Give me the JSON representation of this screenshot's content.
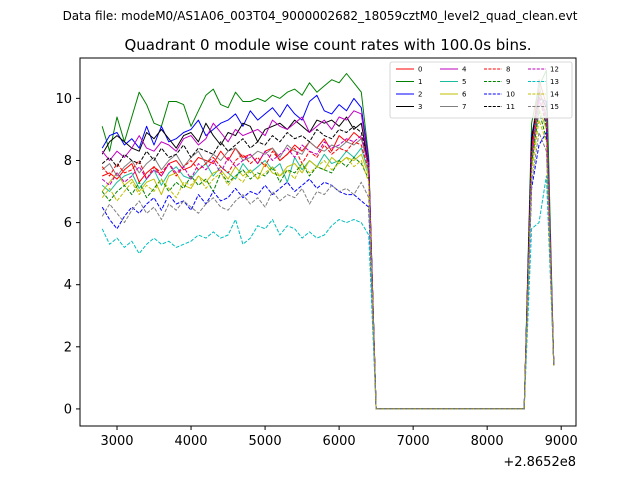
{
  "figure": {
    "suptitle": "Data file: modeM0/AS1A06_003T04_9000002682_18059cztM0_level2_quad_clean.evt",
    "x_offset_label": "+2.8652e8"
  },
  "chart_data": {
    "type": "line",
    "title": "Quadrant 0 module wise count rates with 100.0s bins.",
    "xlabel": "",
    "ylabel": "",
    "xlim": [
      2500,
      9200
    ],
    "ylim": [
      -0.55,
      11.3
    ],
    "x_ticks": [
      3000,
      4000,
      5000,
      6000,
      7000,
      8000,
      9000
    ],
    "x_tick_labels": [
      "3000",
      "4000",
      "5000",
      "6000",
      "7000",
      "8000",
      "9000"
    ],
    "y_ticks": [
      0,
      2,
      4,
      6,
      8,
      10
    ],
    "y_tick_labels": [
      "0",
      "2",
      "4",
      "6",
      "8",
      "10"
    ],
    "legend_location": "upper right",
    "legend_columns": 4,
    "grid": false,
    "x": [
      2800,
      2900,
      3000,
      3100,
      3200,
      3300,
      3400,
      3500,
      3600,
      3700,
      3800,
      3900,
      4000,
      4100,
      4200,
      4300,
      4400,
      4500,
      4600,
      4700,
      4800,
      4900,
      5000,
      5100,
      5200,
      5300,
      5400,
      5500,
      5600,
      5700,
      5800,
      5900,
      6000,
      6100,
      6200,
      6300,
      6400,
      6500,
      6600,
      6700,
      6800,
      6900,
      7000,
      7100,
      7200,
      7300,
      7400,
      7500,
      7600,
      7700,
      7800,
      7900,
      8000,
      8100,
      8200,
      8300,
      8400,
      8500,
      8600,
      8700,
      8800,
      8900
    ],
    "series": [
      {
        "name": "0",
        "color": "#ff0000",
        "dash": "solid",
        "values": [
          7.5,
          7.6,
          7.4,
          7.7,
          7.9,
          7.3,
          7.6,
          7.8,
          7.5,
          7.9,
          8.0,
          7.7,
          7.8,
          8.1,
          8.0,
          7.9,
          8.3,
          8.0,
          8.4,
          8.1,
          8.2,
          7.9,
          8.3,
          8.4,
          8.0,
          8.2,
          8.5,
          8.3,
          8.6,
          8.4,
          8.7,
          8.3,
          8.8,
          8.6,
          8.9,
          8.7,
          8.0,
          0,
          0,
          0,
          0,
          0,
          0,
          0,
          0,
          0,
          0,
          0,
          0,
          0,
          0,
          0,
          0,
          0,
          0,
          0,
          0,
          0,
          8.5,
          10.6,
          9.8,
          1.4
        ]
      },
      {
        "name": "1",
        "color": "#008000",
        "dash": "solid",
        "values": [
          9.1,
          8.3,
          9.4,
          8.6,
          9.4,
          10.2,
          9.8,
          9.2,
          9.1,
          9.9,
          9.9,
          9.8,
          9.1,
          9.6,
          10.1,
          10.3,
          9.8,
          9.7,
          10.2,
          9.9,
          9.9,
          10.0,
          9.9,
          10.1,
          10.0,
          10.2,
          10.3,
          10.1,
          10.5,
          10.2,
          10.4,
          10.6,
          10.5,
          10.8,
          10.5,
          10.2,
          8.1,
          0,
          0,
          0,
          0,
          0,
          0,
          0,
          0,
          0,
          0,
          0,
          0,
          0,
          0,
          0,
          0,
          0,
          0,
          0,
          0,
          0,
          9.2,
          10.4,
          10.9,
          1.4
        ]
      },
      {
        "name": "2",
        "color": "#0000ff",
        "dash": "solid",
        "values": [
          8.4,
          8.8,
          8.9,
          8.5,
          8.7,
          8.4,
          9.1,
          8.5,
          9.1,
          8.6,
          8.7,
          8.9,
          9.0,
          9.3,
          8.8,
          9.0,
          9.2,
          9.3,
          9.5,
          9.1,
          9.6,
          9.3,
          9.5,
          9.7,
          9.4,
          9.8,
          9.5,
          9.3,
          9.9,
          10.1,
          9.6,
          9.5,
          9.8,
          9.6,
          10.0,
          9.7,
          8.0,
          0,
          0,
          0,
          0,
          0,
          0,
          0,
          0,
          0,
          0,
          0,
          0,
          0,
          0,
          0,
          0,
          0,
          0,
          0,
          0,
          0,
          8.8,
          10.0,
          9.9,
          1.4
        ]
      },
      {
        "name": "3",
        "color": "#000000",
        "dash": "solid",
        "values": [
          8.2,
          8.6,
          8.8,
          8.6,
          8.4,
          8.3,
          8.9,
          8.7,
          9.0,
          8.7,
          8.4,
          8.8,
          8.9,
          8.6,
          9.2,
          8.8,
          8.5,
          8.9,
          8.8,
          9.2,
          9.1,
          8.6,
          9.0,
          9.1,
          9.2,
          9.0,
          9.3,
          9.1,
          8.9,
          9.3,
          9.2,
          9.3,
          9.1,
          9.4,
          9.0,
          9.2,
          7.8,
          0,
          0,
          0,
          0,
          0,
          0,
          0,
          0,
          0,
          0,
          0,
          0,
          0,
          0,
          0,
          0,
          0,
          0,
          0,
          0,
          0,
          8.6,
          10.2,
          9.7,
          1.4
        ]
      },
      {
        "name": "4",
        "color": "#bf00bf",
        "dash": "solid",
        "values": [
          8.3,
          8.0,
          8.3,
          8.1,
          8.4,
          8.8,
          8.4,
          8.3,
          8.6,
          8.5,
          8.3,
          8.7,
          8.8,
          8.5,
          8.7,
          9.2,
          8.9,
          8.6,
          9.0,
          8.8,
          8.9,
          9.0,
          8.8,
          9.3,
          9.1,
          9.0,
          9.2,
          9.4,
          8.9,
          9.1,
          9.3,
          9.0,
          9.4,
          9.3,
          9.6,
          9.5,
          7.9,
          0,
          0,
          0,
          0,
          0,
          0,
          0,
          0,
          0,
          0,
          0,
          0,
          0,
          0,
          0,
          0,
          0,
          0,
          0,
          0,
          0,
          8.3,
          9.9,
          9.5,
          1.4
        ]
      },
      {
        "name": "5",
        "color": "#1abc9c",
        "dash": "solid",
        "values": [
          7.2,
          7.0,
          7.3,
          7.5,
          7.6,
          7.1,
          7.4,
          7.7,
          7.2,
          7.6,
          7.8,
          7.5,
          7.4,
          7.7,
          7.9,
          7.5,
          7.8,
          7.6,
          7.4,
          7.9,
          7.6,
          7.8,
          8.0,
          7.7,
          7.9,
          7.3,
          8.1,
          7.7,
          8.0,
          7.8,
          8.2,
          7.9,
          8.0,
          8.3,
          8.1,
          8.4,
          7.6,
          0,
          0,
          0,
          0,
          0,
          0,
          0,
          0,
          0,
          0,
          0,
          0,
          0,
          0,
          0,
          0,
          0,
          0,
          0,
          0,
          0,
          8.0,
          10.5,
          9.2,
          1.4
        ]
      },
      {
        "name": "6",
        "color": "#bfbf00",
        "dash": "solid",
        "values": [
          7.0,
          7.3,
          7.6,
          7.2,
          7.4,
          7.0,
          7.3,
          7.4,
          6.9,
          7.5,
          7.6,
          7.2,
          7.1,
          7.5,
          7.3,
          7.6,
          7.7,
          7.4,
          7.8,
          7.5,
          7.7,
          7.4,
          7.9,
          7.6,
          7.5,
          7.8,
          7.9,
          7.6,
          8.0,
          7.8,
          7.7,
          8.1,
          7.9,
          8.1,
          8.0,
          8.2,
          7.5,
          0,
          0,
          0,
          0,
          0,
          0,
          0,
          0,
          0,
          0,
          0,
          0,
          0,
          0,
          0,
          0,
          0,
          0,
          0,
          0,
          0,
          7.8,
          9.7,
          9.0,
          1.4
        ]
      },
      {
        "name": "7",
        "color": "#808080",
        "dash": "solid",
        "values": [
          7.7,
          7.9,
          7.5,
          7.8,
          8.0,
          7.6,
          7.9,
          8.1,
          7.7,
          8.0,
          8.2,
          7.8,
          8.1,
          8.3,
          7.9,
          8.2,
          8.0,
          8.3,
          8.4,
          8.0,
          8.1,
          8.3,
          8.2,
          8.4,
          8.1,
          8.5,
          8.3,
          8.2,
          8.6,
          8.4,
          8.3,
          8.5,
          8.4,
          8.6,
          8.5,
          8.7,
          7.8,
          0,
          0,
          0,
          0,
          0,
          0,
          0,
          0,
          0,
          0,
          0,
          0,
          0,
          0,
          0,
          0,
          0,
          0,
          0,
          0,
          0,
          8.2,
          9.8,
          9.6,
          1.4
        ]
      },
      {
        "name": "8",
        "color": "#ff0000",
        "dash": "dashed",
        "values": [
          7.8,
          7.5,
          7.9,
          7.6,
          7.7,
          8.0,
          7.4,
          7.8,
          7.6,
          7.9,
          7.5,
          7.8,
          8.0,
          7.7,
          7.9,
          8.1,
          7.8,
          7.6,
          8.0,
          8.2,
          7.9,
          8.1,
          7.8,
          8.3,
          8.0,
          8.2,
          8.4,
          7.9,
          8.3,
          8.1,
          8.5,
          8.2,
          8.4,
          8.3,
          8.6,
          8.5,
          7.7,
          0,
          0,
          0,
          0,
          0,
          0,
          0,
          0,
          0,
          0,
          0,
          0,
          0,
          0,
          0,
          0,
          0,
          0,
          0,
          0,
          0,
          8.3,
          10.3,
          9.4,
          1.4
        ]
      },
      {
        "name": "9",
        "color": "#008000",
        "dash": "dashed",
        "values": [
          7.0,
          6.7,
          7.0,
          7.2,
          6.9,
          7.3,
          6.8,
          7.1,
          7.4,
          7.0,
          7.3,
          7.1,
          7.5,
          7.2,
          7.4,
          7.0,
          7.6,
          7.3,
          7.5,
          7.7,
          7.4,
          7.6,
          7.5,
          7.8,
          7.3,
          7.7,
          7.6,
          7.9,
          7.5,
          7.8,
          7.7,
          7.6,
          8.0,
          7.8,
          8.1,
          7.9,
          7.4,
          0,
          0,
          0,
          0,
          0,
          0,
          0,
          0,
          0,
          0,
          0,
          0,
          0,
          0,
          0,
          0,
          0,
          0,
          0,
          0,
          0,
          7.9,
          9.6,
          8.7,
          1.4
        ]
      },
      {
        "name": "10",
        "color": "#0000ff",
        "dash": "dashed",
        "values": [
          6.5,
          6.1,
          5.8,
          6.2,
          6.5,
          6.3,
          6.6,
          6.8,
          6.4,
          6.9,
          6.6,
          6.7,
          6.4,
          6.9,
          6.6,
          7.0,
          6.7,
          6.8,
          7.1,
          6.8,
          7.0,
          6.9,
          7.2,
          6.9,
          7.1,
          7.3,
          7.0,
          7.2,
          7.4,
          7.1,
          7.3,
          7.2,
          7.0,
          6.9,
          6.9,
          6.7,
          6.5,
          0,
          0,
          0,
          0,
          0,
          0,
          0,
          0,
          0,
          0,
          0,
          0,
          0,
          0,
          0,
          0,
          0,
          0,
          0,
          0,
          0,
          7.1,
          8.5,
          8.9,
          1.4
        ]
      },
      {
        "name": "11",
        "color": "#000000",
        "dash": "dashed",
        "values": [
          7.9,
          8.1,
          7.8,
          8.2,
          8.0,
          7.9,
          8.3,
          8.0,
          8.4,
          8.1,
          8.2,
          8.5,
          8.1,
          8.4,
          8.3,
          8.2,
          8.6,
          8.3,
          8.5,
          8.7,
          8.4,
          8.6,
          8.5,
          8.8,
          8.6,
          8.9,
          8.7,
          8.8,
          8.6,
          9.0,
          8.8,
          8.7,
          9.0,
          8.9,
          9.1,
          8.9,
          7.9,
          0,
          0,
          0,
          0,
          0,
          0,
          0,
          0,
          0,
          0,
          0,
          0,
          0,
          0,
          0,
          0,
          0,
          0,
          0,
          0,
          0,
          8.7,
          10.1,
          9.1,
          1.4
        ]
      },
      {
        "name": "12",
        "color": "#bf00bf",
        "dash": "dashed",
        "values": [
          7.4,
          7.2,
          7.6,
          7.3,
          7.5,
          7.8,
          7.4,
          7.7,
          7.5,
          7.9,
          7.6,
          7.8,
          7.4,
          7.9,
          7.7,
          8.0,
          7.6,
          8.1,
          7.8,
          8.0,
          8.2,
          7.9,
          8.3,
          8.0,
          8.2,
          8.4,
          8.1,
          8.5,
          8.3,
          8.2,
          8.6,
          8.4,
          8.5,
          8.7,
          8.6,
          8.8,
          7.8,
          0,
          0,
          0,
          0,
          0,
          0,
          0,
          0,
          0,
          0,
          0,
          0,
          0,
          0,
          0,
          0,
          0,
          0,
          0,
          0,
          0,
          8.1,
          10.0,
          9.3,
          1.4
        ]
      },
      {
        "name": "13",
        "color": "#00bfbf",
        "dash": "dashed",
        "values": [
          5.8,
          5.3,
          5.5,
          5.2,
          5.4,
          5.0,
          5.3,
          5.5,
          5.3,
          5.4,
          5.2,
          5.3,
          5.4,
          5.6,
          5.5,
          5.7,
          5.5,
          5.6,
          6.1,
          5.3,
          5.5,
          5.9,
          5.8,
          6.1,
          5.6,
          5.9,
          5.8,
          5.5,
          5.7,
          5.5,
          5.6,
          5.9,
          6.1,
          6.0,
          6.1,
          6.0,
          5.6,
          0,
          0,
          0,
          0,
          0,
          0,
          0,
          0,
          0,
          0,
          0,
          0,
          0,
          0,
          0,
          0,
          0,
          0,
          0,
          0,
          0,
          5.8,
          6.0,
          7.5,
          1.4
        ]
      },
      {
        "name": "14",
        "color": "#bfbf00",
        "dash": "dashed",
        "values": [
          6.8,
          7.1,
          6.7,
          7.0,
          7.3,
          6.9,
          7.2,
          7.0,
          7.4,
          7.1,
          6.8,
          7.3,
          7.2,
          7.5,
          7.1,
          7.4,
          7.6,
          7.2,
          7.5,
          7.3,
          7.7,
          7.4,
          7.6,
          7.8,
          7.5,
          7.7,
          7.4,
          7.9,
          7.6,
          7.8,
          8.0,
          7.7,
          7.9,
          8.1,
          7.8,
          8.0,
          7.3,
          0,
          0,
          0,
          0,
          0,
          0,
          0,
          0,
          0,
          0,
          0,
          0,
          0,
          0,
          0,
          0,
          0,
          0,
          0,
          0,
          0,
          7.6,
          9.3,
          8.6,
          1.4
        ]
      },
      {
        "name": "15",
        "color": "#808080",
        "dash": "dashed",
        "values": [
          6.2,
          6.6,
          6.3,
          6.0,
          6.4,
          6.7,
          6.3,
          6.5,
          6.1,
          6.6,
          6.4,
          6.7,
          6.5,
          6.3,
          6.6,
          6.8,
          6.5,
          6.4,
          6.7,
          6.9,
          6.6,
          6.8,
          6.5,
          7.0,
          6.7,
          6.9,
          6.8,
          7.1,
          6.6,
          7.0,
          6.9,
          7.2,
          7.0,
          7.1,
          6.9,
          7.3,
          6.8,
          0,
          0,
          0,
          0,
          0,
          0,
          0,
          0,
          0,
          0,
          0,
          0,
          0,
          0,
          0,
          0,
          0,
          0,
          0,
          0,
          0,
          7.3,
          8.9,
          8.3,
          1.4
        ]
      }
    ]
  }
}
